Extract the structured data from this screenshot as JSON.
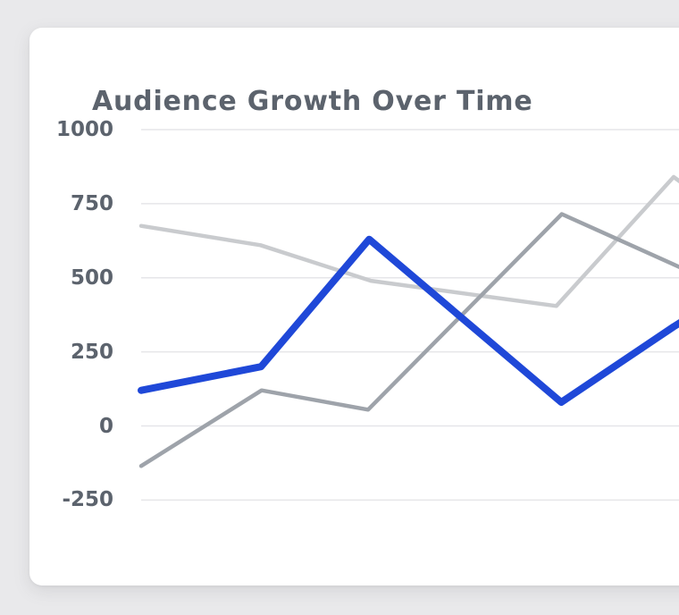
{
  "page": {
    "background_color": "#e9e9eb"
  },
  "card": {
    "background_color": "#ffffff"
  },
  "chart": {
    "title": "Audience Growth Over Time",
    "title_color": "#5c636d",
    "grid_color": "#e6e6e9",
    "tick_label_color": "#5c636d"
  },
  "chart_data": {
    "type": "line",
    "title": "Audience Growth Over Time",
    "xlabel": "",
    "ylabel": "",
    "ylim": [
      -250,
      1000
    ],
    "grid": true,
    "legend_position": "none",
    "x_tick_labels_visible": false,
    "note": "chart is cut off at the right edge of the screenshot; x values are fractions of the visible plot width",
    "y_ticks": [
      {
        "label": "1000",
        "value": 1000
      },
      {
        "label": "750",
        "value": 750
      },
      {
        "label": "500",
        "value": 500
      },
      {
        "label": "250",
        "value": 250
      },
      {
        "label": "0",
        "value": 0
      },
      {
        "label": "-250",
        "value": -250
      }
    ],
    "series": [
      {
        "name": "series-light-gray",
        "color": "#c9cbce",
        "stroke_width": 4.5,
        "points": [
          {
            "x": 0.0,
            "v": 675
          },
          {
            "x": 0.222,
            "v": 610
          },
          {
            "x": 0.427,
            "v": 490
          },
          {
            "x": 0.772,
            "v": 405
          },
          {
            "x": 0.99,
            "v": 840
          },
          {
            "x": 1.03,
            "v": 788
          }
        ]
      },
      {
        "name": "series-medium-gray",
        "color": "#9ea3aa",
        "stroke_width": 4.5,
        "points": [
          {
            "x": 0.0,
            "v": -135
          },
          {
            "x": 0.224,
            "v": 120
          },
          {
            "x": 0.422,
            "v": 55
          },
          {
            "x": 0.782,
            "v": 715
          },
          {
            "x": 0.99,
            "v": 545
          },
          {
            "x": 1.03,
            "v": 512
          }
        ]
      },
      {
        "name": "series-primary-blue",
        "color": "#1f48d8",
        "stroke_width": 8,
        "points": [
          {
            "x": 0.0,
            "v": 120
          },
          {
            "x": 0.223,
            "v": 200
          },
          {
            "x": 0.424,
            "v": 630
          },
          {
            "x": 0.781,
            "v": 80
          },
          {
            "x": 0.99,
            "v": 335
          },
          {
            "x": 1.03,
            "v": 380
          }
        ]
      }
    ]
  }
}
